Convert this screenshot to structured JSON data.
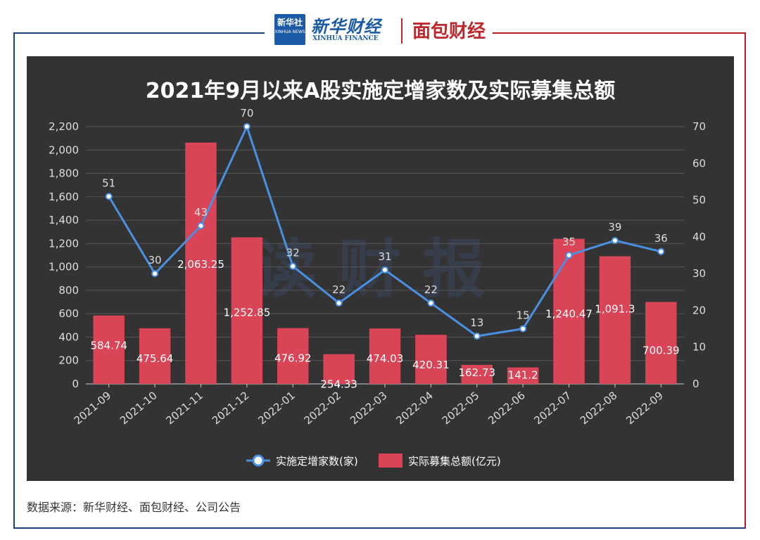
{
  "header": {
    "badge_text": "新华社",
    "badge_sub": "XINHUA NEWS",
    "xinhua_finance_cn": "新华财经",
    "xinhua_finance_en": "XINHUA FINANCE",
    "mianbao_logo": "面包财经"
  },
  "watermark": "读财报",
  "source_text": "数据来源：新华财经、面包财经、公司公告",
  "colors": {
    "frame_blue": "#1d3f80",
    "frame_red": "#b81e24",
    "chart_bg": "#333333",
    "bar": "#d94457",
    "line": "#4a90e2"
  },
  "chart_data": {
    "type": "bar+line",
    "title": "2021年9月以来A股实施定增家数及实际募集总额",
    "categories": [
      "2021-09",
      "2021-10",
      "2021-11",
      "2021-12",
      "2022-01",
      "2022-02",
      "2022-03",
      "2022-04",
      "2022-05",
      "2022-06",
      "2022-07",
      "2022-08",
      "2022-09"
    ],
    "series": [
      {
        "name": "实际募集总额(亿元)",
        "type": "bar",
        "axis": "left",
        "values": [
          584.74,
          475.64,
          2063.25,
          1252.85,
          476.92,
          254.33,
          474.03,
          420.31,
          162.73,
          141.2,
          1240.47,
          1091.3,
          700.39
        ],
        "labels": [
          "584.74",
          "475.64",
          "2,063.25",
          "1,252.85",
          "476.92",
          "254.33",
          "474.03",
          "420.31",
          "162.73",
          "141.2",
          "1,240.47",
          "1,091.3",
          "700.39"
        ]
      },
      {
        "name": "实施定增家数(家)",
        "type": "line",
        "axis": "right",
        "values": [
          51,
          30,
          43,
          70,
          32,
          22,
          31,
          22,
          13,
          15,
          35,
          39,
          36
        ],
        "labels": [
          "51",
          "30",
          "43",
          "70",
          "32",
          "22",
          "31",
          "22",
          "13",
          "15",
          "35",
          "39",
          "36"
        ]
      }
    ],
    "y_left": {
      "ylim": [
        0,
        2200
      ],
      "ticks": [
        "0",
        "200",
        "400",
        "600",
        "800",
        "1,000",
        "1,200",
        "1,400",
        "1,600",
        "1,800",
        "2,000",
        "2,200"
      ]
    },
    "y_right": {
      "ylim": [
        0,
        70
      ],
      "ticks": [
        "0",
        "10",
        "20",
        "30",
        "40",
        "50",
        "60",
        "70"
      ]
    },
    "legend": {
      "position": "bottom",
      "items": [
        "实施定增家数(家)",
        "实际募集总额(亿元)"
      ]
    },
    "grid": true
  }
}
